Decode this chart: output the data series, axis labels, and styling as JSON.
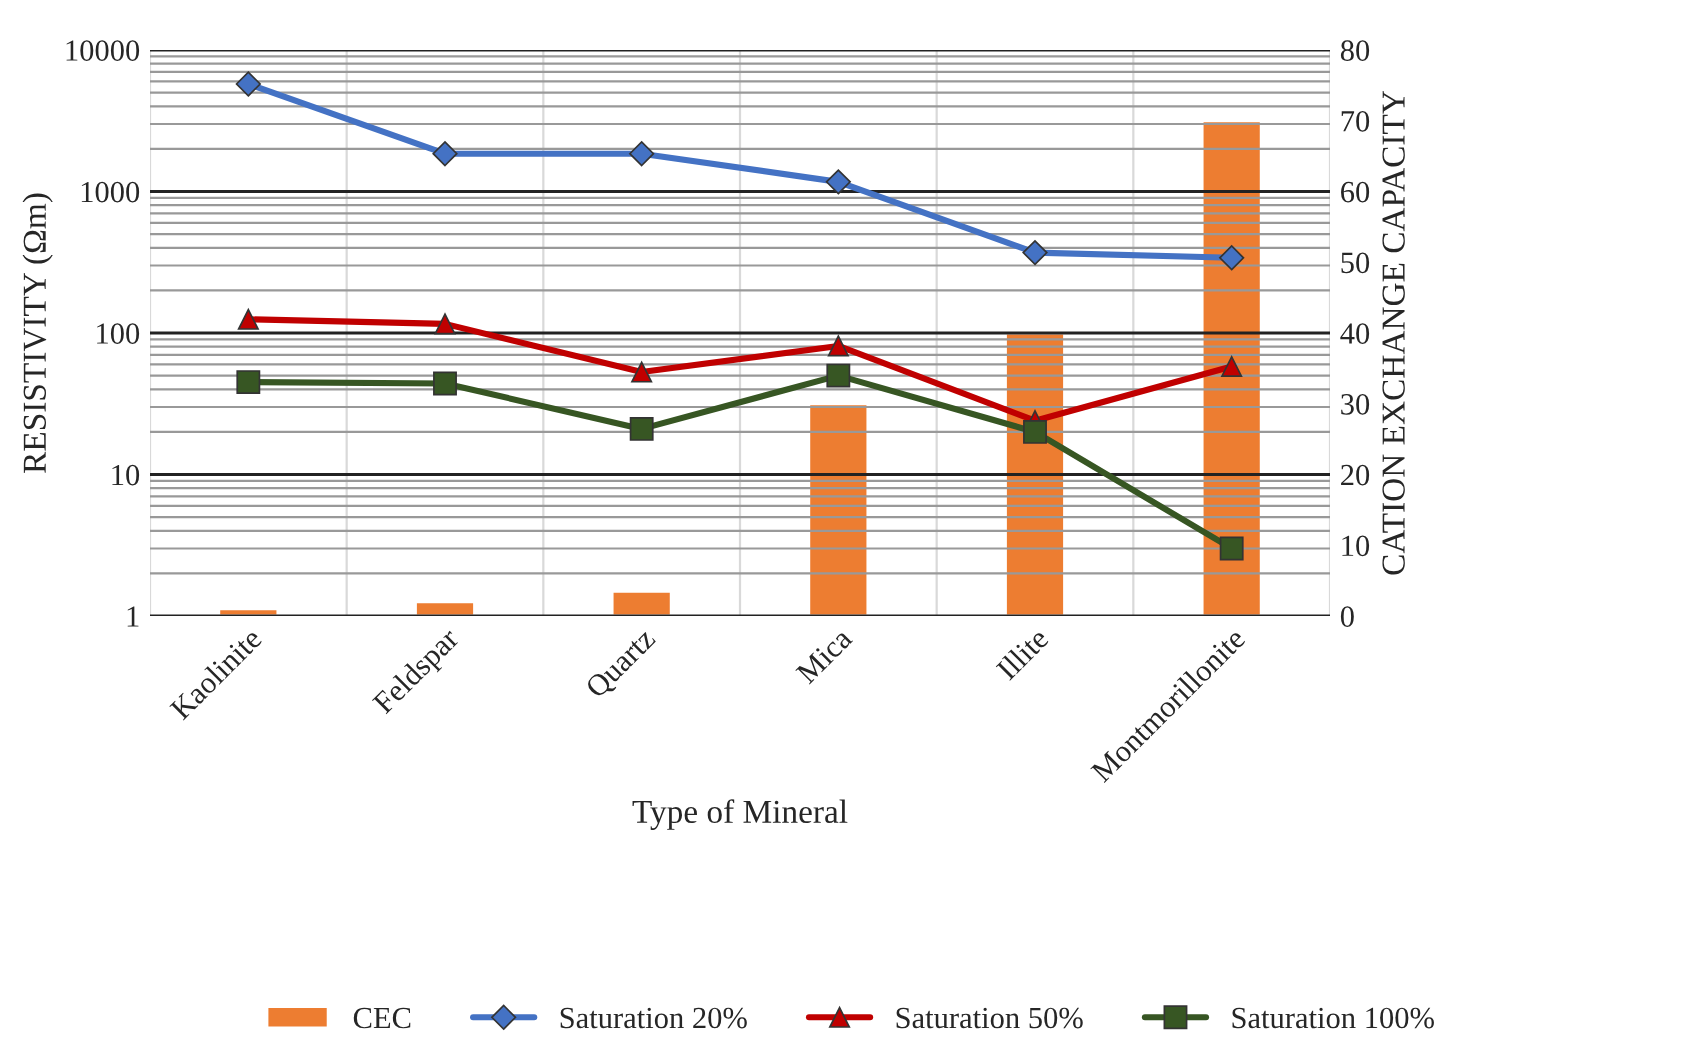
{
  "chart_data": {
    "type": "line",
    "xlabel": "Type of Mineral",
    "ylabel": "RESISTIVITY (Ωm)",
    "y2label": "CATION EXCHANGE CAPACITY",
    "categories": [
      "Kaolinite",
      "Feldspar",
      "Quartz",
      "Mica",
      "Illite",
      "Montmorillonite"
    ],
    "series": [
      {
        "name": "CEC",
        "type": "bar",
        "axis": "y2",
        "color": "#ed7d31",
        "values": [
          1,
          2,
          3.5,
          30,
          40,
          70
        ]
      },
      {
        "name": "Saturation 20%",
        "marker": "diamond",
        "color": "#4472c4",
        "values": [
          5750,
          1850,
          1850,
          1170,
          370,
          340
        ]
      },
      {
        "name": "Saturation 50%",
        "marker": "triangle",
        "color": "#c00000",
        "values": [
          125,
          116,
          53,
          81,
          24,
          58
        ]
      },
      {
        "name": "Saturation 100%",
        "marker": "square",
        "color": "#375623",
        "values": [
          45,
          44,
          21,
          50,
          20,
          3
        ]
      }
    ],
    "log": "y",
    "ylim": [
      1,
      10000
    ],
    "yticks": [
      1,
      10,
      100,
      1000,
      10000
    ],
    "y2lim": [
      0,
      80
    ],
    "y2ticks": [
      0,
      10,
      20,
      30,
      40,
      50,
      60,
      70,
      80
    ],
    "grid": true,
    "legend": "bottom"
  }
}
